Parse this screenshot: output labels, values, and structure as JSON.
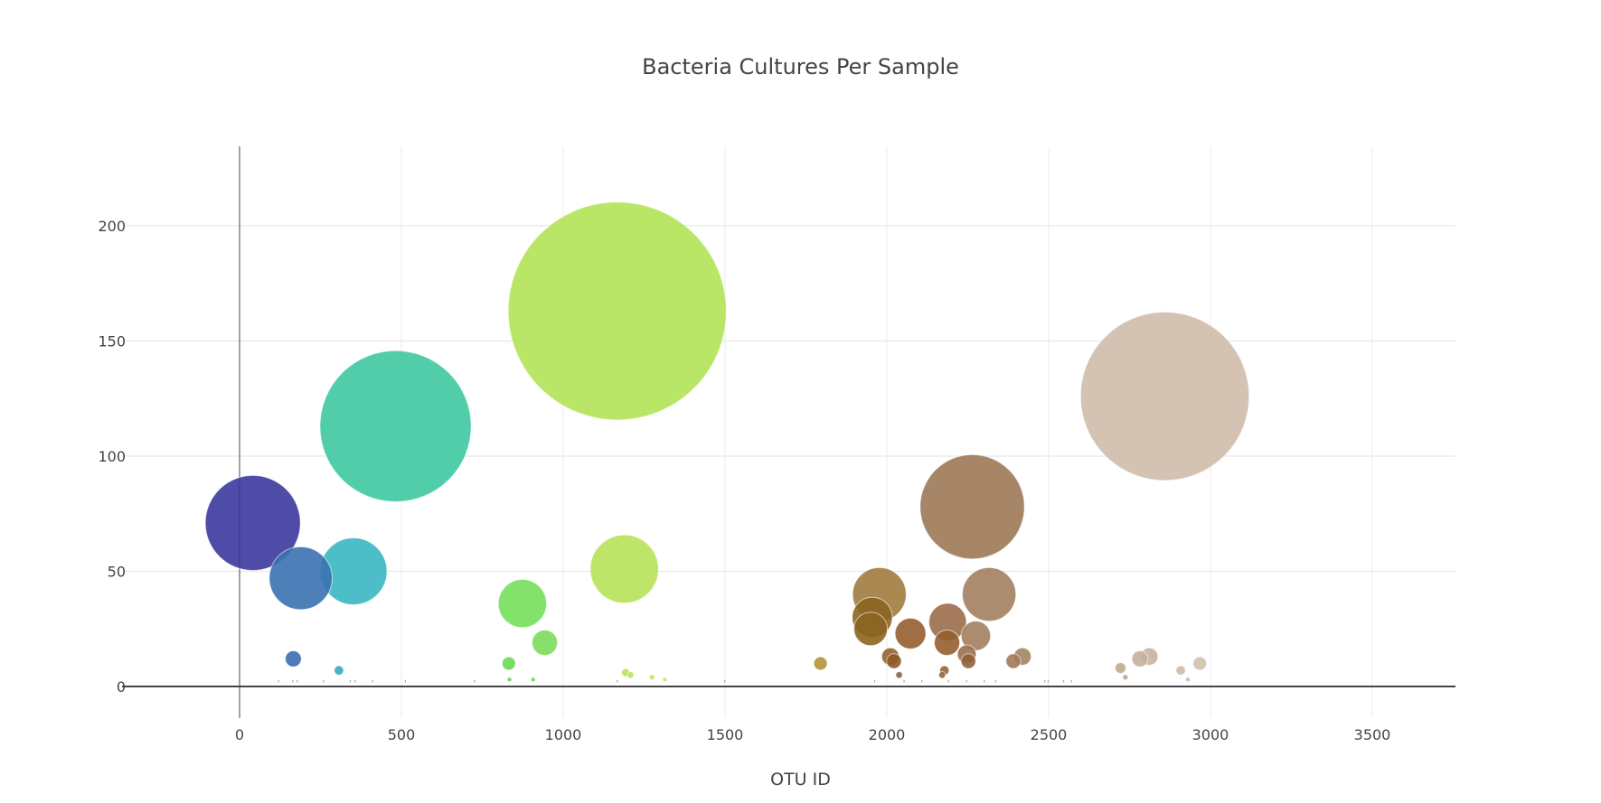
{
  "chart_data": {
    "type": "scatter",
    "subtype": "bubble",
    "title": "Bacteria Cultures Per Sample",
    "xlabel": "OTU ID",
    "ylabel": "",
    "xlim": [
      -330,
      3750
    ],
    "ylim": [
      -40,
      235
    ],
    "x_ticks": [
      0,
      500,
      1000,
      1500,
      2000,
      2500,
      3000,
      3500
    ],
    "y_ticks": [
      0,
      50,
      100,
      150,
      200
    ],
    "grid": true,
    "legend": "none",
    "colorscale": "Earth",
    "points": [
      {
        "x": 41,
        "y": 71,
        "size": 71,
        "color": "#3b389c"
      },
      {
        "x": 189,
        "y": 47,
        "size": 47,
        "color": "#3a72b0"
      },
      {
        "x": 352,
        "y": 50,
        "size": 50,
        "color": "#3ab7c2"
      },
      {
        "x": 482,
        "y": 113,
        "size": 113,
        "color": "#3ec9a0"
      },
      {
        "x": 166,
        "y": 12,
        "size": 12,
        "color": "#3a6db0"
      },
      {
        "x": 307,
        "y": 7,
        "size": 7,
        "color": "#3aa8c2"
      },
      {
        "x": 874,
        "y": 36,
        "size": 36,
        "color": "#74df59"
      },
      {
        "x": 943,
        "y": 19,
        "size": 19,
        "color": "#7cdc5b"
      },
      {
        "x": 832,
        "y": 10,
        "size": 10,
        "color": "#6cd955"
      },
      {
        "x": 1167,
        "y": 163,
        "size": 163,
        "color": "#b2e356"
      },
      {
        "x": 1189,
        "y": 51,
        "size": 51,
        "color": "#b8e258"
      },
      {
        "x": 1795,
        "y": 10,
        "size": 10,
        "color": "#b2943b"
      },
      {
        "x": 1977,
        "y": 40,
        "size": 40,
        "color": "#a07c3e"
      },
      {
        "x": 1955,
        "y": 30,
        "size": 30,
        "color": "#8c6420"
      },
      {
        "x": 1950,
        "y": 25,
        "size": 25,
        "color": "#8c6420"
      },
      {
        "x": 2011,
        "y": 13,
        "size": 13,
        "color": "#95642e"
      },
      {
        "x": 2022,
        "y": 11,
        "size": 11,
        "color": "#8c5a26"
      },
      {
        "x": 2073,
        "y": 23,
        "size": 23,
        "color": "#955e2e"
      },
      {
        "x": 2188,
        "y": 28,
        "size": 28,
        "color": "#9a6e4b"
      },
      {
        "x": 2186,
        "y": 19,
        "size": 19,
        "color": "#955e2e"
      },
      {
        "x": 2264,
        "y": 78,
        "size": 78,
        "color": "#9c7955"
      },
      {
        "x": 2316,
        "y": 40,
        "size": 40,
        "color": "#a3805e"
      },
      {
        "x": 2275,
        "y": 22,
        "size": 22,
        "color": "#a3805e"
      },
      {
        "x": 2247,
        "y": 14,
        "size": 14,
        "color": "#9c7050"
      },
      {
        "x": 2252,
        "y": 11,
        "size": 11,
        "color": "#90603a"
      },
      {
        "x": 2419,
        "y": 13,
        "size": 13,
        "color": "#a58461"
      },
      {
        "x": 2391,
        "y": 11,
        "size": 11,
        "color": "#a07a58"
      },
      {
        "x": 2859,
        "y": 126,
        "size": 126,
        "color": "#cfbdaa"
      },
      {
        "x": 2811,
        "y": 13,
        "size": 13,
        "color": "#c8b4a0"
      },
      {
        "x": 2782,
        "y": 12,
        "size": 12,
        "color": "#c4b09a"
      },
      {
        "x": 2722,
        "y": 8,
        "size": 8,
        "color": "#c0a892"
      },
      {
        "x": 2967,
        "y": 10,
        "size": 10,
        "color": "#d2c0ae"
      },
      {
        "x": 2908,
        "y": 7,
        "size": 7,
        "color": "#cdbba8"
      },
      {
        "x": 2178,
        "y": 7,
        "size": 7,
        "color": "#96653a"
      },
      {
        "x": 2171,
        "y": 5,
        "size": 5,
        "color": "#96653a"
      },
      {
        "x": 2038,
        "y": 5,
        "size": 5,
        "color": "#90603a"
      },
      {
        "x": 2737,
        "y": 4,
        "size": 4,
        "color": "#bba28c"
      },
      {
        "x": 1193,
        "y": 6,
        "size": 6,
        "color": "#b8e258"
      },
      {
        "x": 1208,
        "y": 5,
        "size": 5,
        "color": "#c2e45a"
      },
      {
        "x": 1274,
        "y": 4,
        "size": 4,
        "color": "#c8e45c"
      },
      {
        "x": 1314,
        "y": 3,
        "size": 3,
        "color": "#d0e45e"
      },
      {
        "x": 834,
        "y": 3,
        "size": 3,
        "color": "#6cd955"
      },
      {
        "x": 907,
        "y": 3,
        "size": 3,
        "color": "#6cd955"
      },
      {
        "x": 2930,
        "y": 3,
        "size": 3,
        "color": "#cdbba8"
      }
    ],
    "trace_points": [
      {
        "x": 120,
        "y": 2
      },
      {
        "x": 164,
        "y": 2
      },
      {
        "x": 178,
        "y": 2
      },
      {
        "x": 259,
        "y": 2
      },
      {
        "x": 342,
        "y": 2
      },
      {
        "x": 357,
        "y": 2
      },
      {
        "x": 411,
        "y": 2
      },
      {
        "x": 512,
        "y": 2
      },
      {
        "x": 726,
        "y": 2
      },
      {
        "x": 1167,
        "y": 2
      },
      {
        "x": 1499,
        "y": 2
      },
      {
        "x": 1962,
        "y": 2
      },
      {
        "x": 2053,
        "y": 2
      },
      {
        "x": 2108,
        "y": 2
      },
      {
        "x": 2190,
        "y": 2
      },
      {
        "x": 2246,
        "y": 2
      },
      {
        "x": 2301,
        "y": 2
      },
      {
        "x": 2336,
        "y": 2
      },
      {
        "x": 2488,
        "y": 2
      },
      {
        "x": 2498,
        "y": 2
      },
      {
        "x": 2546,
        "y": 2
      },
      {
        "x": 2570,
        "y": 2
      }
    ]
  },
  "labels": {
    "title": "Bacteria Cultures Per Sample",
    "x_axis_title": "OTU ID"
  }
}
